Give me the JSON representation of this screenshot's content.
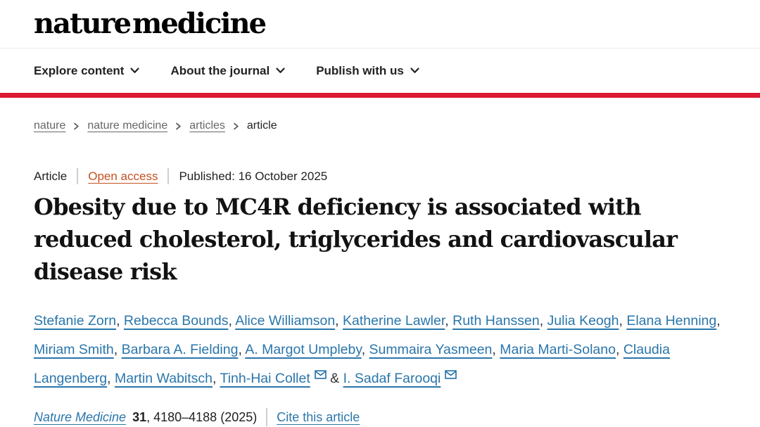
{
  "colors": {
    "brand_red": "#dc1a32",
    "link_blue": "#2a76ab",
    "open_access_orange": "#c5511f",
    "text_dark": "#222222",
    "breadcrumb_gray": "#666666"
  },
  "header": {
    "logo": "nature medicine",
    "nav": [
      {
        "label": "Explore content"
      },
      {
        "label": "About the journal"
      },
      {
        "label": "Publish with us"
      }
    ]
  },
  "breadcrumb": {
    "items": [
      {
        "label": "nature",
        "current": false
      },
      {
        "label": "nature medicine",
        "current": false
      },
      {
        "label": "articles",
        "current": false
      },
      {
        "label": "article",
        "current": true
      }
    ]
  },
  "article": {
    "type_label": "Article",
    "access_label": "Open access",
    "published_label": "Published: 16 October 2025",
    "title": "Obesity due to MC4R deficiency is associated with reduced cholesterol, triglycerides and cardiovascular disease risk",
    "title_lines": [
      "Obesity due to MC4R deficiency is associated with",
      "reduced cholesterol, triglycerides and cardiovascular",
      "disease risk"
    ],
    "authors": [
      {
        "name": "Stefanie Zorn",
        "email_icon": false
      },
      {
        "name": "Rebecca Bounds",
        "email_icon": false
      },
      {
        "name": "Alice Williamson",
        "email_icon": false
      },
      {
        "name": "Katherine Lawler",
        "email_icon": false
      },
      {
        "name": "Ruth Hanssen",
        "email_icon": false
      },
      {
        "name": "Julia Keogh",
        "email_icon": false
      },
      {
        "name": "Elana Henning",
        "email_icon": false
      },
      {
        "name": "Miriam Smith",
        "email_icon": false
      },
      {
        "name": "Barbara A. Fielding",
        "email_icon": false
      },
      {
        "name": "A. Margot Umpleby",
        "email_icon": false
      },
      {
        "name": "Summaira Yasmeen",
        "email_icon": false
      },
      {
        "name": "Maria Marti-Solano",
        "email_icon": false
      },
      {
        "name": "Claudia Langenberg",
        "email_icon": false
      },
      {
        "name": "Martin Wabitsch",
        "email_icon": false
      },
      {
        "name": "Tinh-Hai Collet",
        "email_icon": true
      },
      {
        "name": "I. Sadaf Farooqi",
        "email_icon": true
      }
    ],
    "citation": {
      "journal": "Nature Medicine",
      "volume": "31",
      "pages": ", 4180–4188 (2025)",
      "cite_link": "Cite this article"
    }
  }
}
